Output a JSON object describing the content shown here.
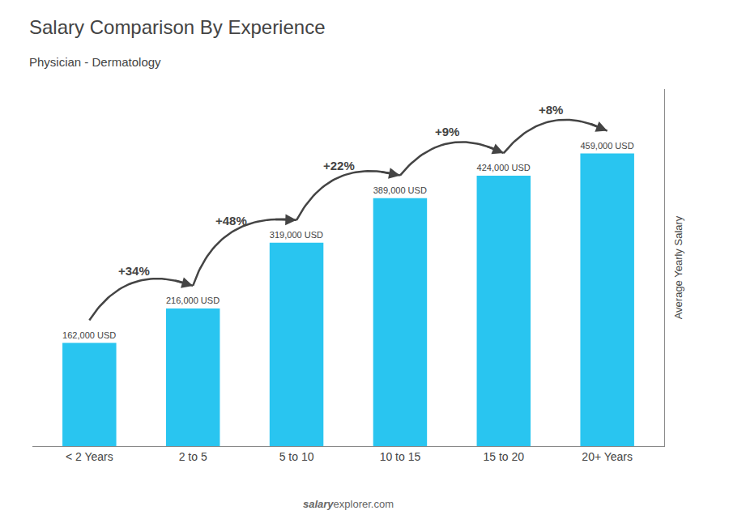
{
  "chart_data": {
    "type": "bar",
    "title": "Salary Comparison By Experience",
    "subtitle": "Physician - Dermatology",
    "categories": [
      "< 2 Years",
      "2 to 5",
      "5 to 10",
      "10 to 15",
      "15 to 20",
      "20+ Years"
    ],
    "values": [
      162000,
      216000,
      319000,
      389000,
      424000,
      459000
    ],
    "value_labels": [
      "162,000 USD",
      "216,000 USD",
      "319,000 USD",
      "389,000 USD",
      "424,000 USD",
      "459,000 USD"
    ],
    "data_labels": true,
    "change_labels": [
      "+34%",
      "+48%",
      "+22%",
      "+9%",
      "+8%"
    ],
    "ylabel": "Average Yearly Salary",
    "annotations": [
      "salary",
      "explorer.com"
    ],
    "color": "#29c5f0",
    "ylim": [
      0,
      560000
    ],
    "grid": false,
    "tick_labels": "x"
  }
}
